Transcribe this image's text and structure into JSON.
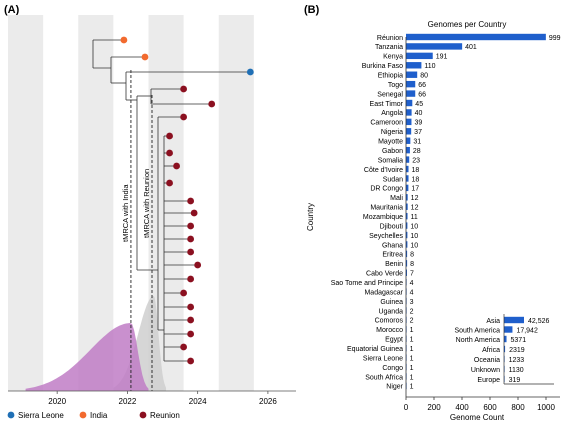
{
  "colors": {
    "sierra_leone": "#1f6fb5",
    "india": "#f26a2e",
    "reunion": "#8b1020",
    "bar": "#1f5fcc",
    "band": "#ebebeb",
    "density_india": "#c07cc6",
    "density_reunion": "#cfcfcf"
  },
  "panel_a": {
    "label": "(A)",
    "x_ticks": [
      "2020",
      "2022",
      "2024",
      "2026"
    ],
    "tmrca_india_label": "tMRCA with India",
    "tmrca_reunion_label": "tMRCA with Reunion",
    "tmrca_india": 2022.1,
    "tmrca_reunion": 2022.7,
    "legend": [
      {
        "name": "Sierra Leone",
        "color": "#1f6fb5"
      },
      {
        "name": "India",
        "color": "#f26a2e"
      },
      {
        "name": "Reunion",
        "color": "#8b1020"
      }
    ]
  },
  "panel_b": {
    "label": "(B)",
    "title": "Genomes per Country"
  },
  "chart_data": [
    {
      "type": "tree",
      "x_axis": {
        "ticks": [
          2020,
          2022,
          2024,
          2026
        ],
        "range": [
          2018.6,
          2026.8
        ]
      },
      "tips": [
        {
          "location": "India",
          "date": 2021.9
        },
        {
          "location": "India",
          "date": 2022.5
        },
        {
          "location": "Sierra Leone",
          "date": 2025.5
        },
        {
          "location": "Reunion",
          "date": 2023.6
        },
        {
          "location": "Reunion",
          "date": 2024.4
        },
        {
          "location": "Reunion",
          "date": 2023.6
        },
        {
          "location": "Reunion",
          "date": 2023.2
        },
        {
          "location": "Reunion",
          "date": 2023.2
        },
        {
          "location": "Reunion",
          "date": 2023.4
        },
        {
          "location": "Reunion",
          "date": 2023.2
        },
        {
          "location": "Reunion",
          "date": 2023.8
        },
        {
          "location": "Reunion",
          "date": 2023.9
        },
        {
          "location": "Reunion",
          "date": 2023.8
        },
        {
          "location": "Reunion",
          "date": 2023.8
        },
        {
          "location": "Reunion",
          "date": 2023.8
        },
        {
          "location": "Reunion",
          "date": 2024.0
        },
        {
          "location": "Reunion",
          "date": 2023.8
        },
        {
          "location": "Reunion",
          "date": 2023.6
        },
        {
          "location": "Reunion",
          "date": 2023.8
        },
        {
          "location": "Reunion",
          "date": 2023.8
        },
        {
          "location": "Reunion",
          "date": 2023.8
        },
        {
          "location": "Reunion",
          "date": 2023.6
        },
        {
          "location": "Reunion",
          "date": 2023.8
        }
      ],
      "tmrca_density": [
        {
          "name": "India",
          "peak": 2022.1,
          "min": 2019.1,
          "max": 2022.6
        },
        {
          "name": "Reunion",
          "peak": 2022.75,
          "min": 2021.6,
          "max": 2023.1
        }
      ]
    },
    {
      "type": "bar",
      "orientation": "horizontal",
      "title": "Genomes per Country",
      "xlabel": "Genome Count",
      "ylabel": "Country",
      "xlim": [
        0,
        1050
      ],
      "x_ticks": [
        0,
        200,
        400,
        600,
        800,
        1000
      ],
      "categories": [
        "Réunion",
        "Tanzania",
        "Kenya",
        "Burkina Faso",
        "Ethiopia",
        "Togo",
        "Senegal",
        "East Timor",
        "Angola",
        "Cameroon",
        "Nigeria",
        "Mayotte",
        "Gabon",
        "Somalia",
        "Côte d'Ivoire",
        "Sudan",
        "DR Congo",
        "Mali",
        "Mauritania",
        "Mozambique",
        "Djibouti",
        "Seychelles",
        "Ghana",
        "Eritrea",
        "Benin",
        "Cabo Verde",
        "Sao Tome and Principe",
        "Madagascar",
        "Guinea",
        "Uganda",
        "Comoros",
        "Morocco",
        "Egypt",
        "Equatorial Guinea",
        "Sierra Leone",
        "Congo",
        "South Africa",
        "Niger"
      ],
      "values": [
        999,
        401,
        191,
        110,
        80,
        66,
        66,
        45,
        40,
        39,
        37,
        31,
        28,
        23,
        18,
        18,
        17,
        12,
        12,
        11,
        10,
        10,
        10,
        8,
        8,
        7,
        4,
        4,
        3,
        2,
        2,
        1,
        1,
        1,
        1,
        1,
        1,
        1
      ],
      "value_labels": [
        "999",
        "401",
        "191",
        "110",
        "80",
        "66",
        "66",
        "45",
        "40",
        "39",
        "37",
        "31",
        "28",
        "23",
        "18",
        "18",
        "17",
        "12",
        "12",
        "11",
        "10",
        "10",
        "10",
        "8",
        "8",
        "7",
        "4",
        "4",
        "3",
        "2",
        "2",
        "1",
        "1",
        "1",
        "1",
        "1",
        "1",
        "1"
      ],
      "inset": {
        "categories": [
          "Asia",
          "South America",
          "North America",
          "Africa",
          "Oceania",
          "Unknown",
          "Europe"
        ],
        "values": [
          42526,
          17942,
          5371,
          2319,
          1233,
          1130,
          319
        ],
        "value_labels": [
          "42,526",
          "17,942",
          "5371",
          "2319",
          "1233",
          "1130",
          "319"
        ]
      }
    }
  ]
}
